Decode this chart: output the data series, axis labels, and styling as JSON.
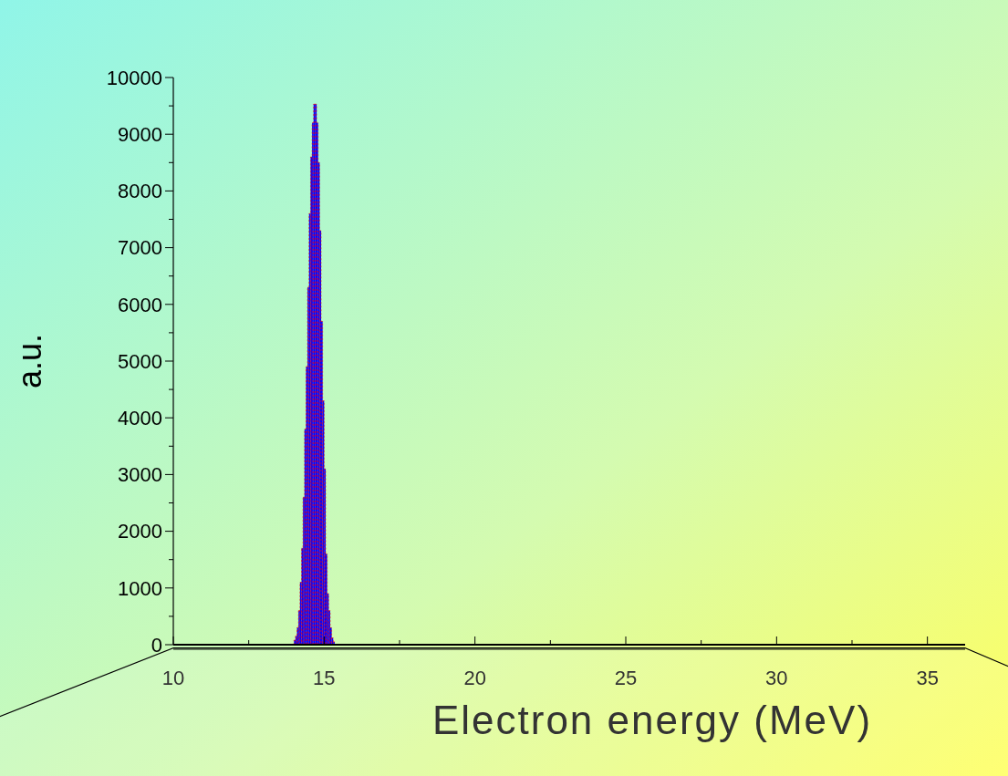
{
  "chart_data": {
    "type": "histogram",
    "xlabel": "Electron energy (MeV)",
    "ylabel": "a.u.",
    "bins": [
      14.0,
      14.05,
      14.1,
      14.15,
      14.2,
      14.25,
      14.3,
      14.35,
      14.4,
      14.45,
      14.5,
      14.55,
      14.6,
      14.65,
      14.7,
      14.75,
      14.8,
      14.85,
      14.9,
      14.95,
      15.0,
      15.05,
      15.1,
      15.15,
      15.2,
      15.25,
      15.3,
      15.35
    ],
    "values": [
      80,
      150,
      300,
      600,
      1100,
      1700,
      2600,
      3800,
      4900,
      6300,
      7600,
      8600,
      9200,
      9530,
      9530,
      9200,
      8500,
      7300,
      5700,
      4300,
      3100,
      1600,
      900,
      600,
      300,
      120,
      50
    ],
    "color": "#0000ff",
    "xlim": [
      10,
      36.25
    ],
    "xticks": [
      10,
      {
        "value": 12.5,
        "label": null
      },
      15,
      {
        "value": 17.5,
        "label": null
      },
      20,
      {
        "value": 22.5,
        "label": null
      },
      25,
      {
        "value": 27.5,
        "label": null
      },
      30,
      {
        "value": 32.5,
        "label": null
      },
      35
    ],
    "ylim": [
      0,
      10000
    ],
    "yticks": [
      0,
      {
        "value": 500,
        "label": null
      },
      1000,
      {
        "value": 1500,
        "label": null
      },
      2000,
      {
        "value": 2500,
        "label": null
      },
      3000,
      {
        "value": 3500,
        "label": null
      },
      4000,
      {
        "value": 4500,
        "label": null
      },
      5000,
      {
        "value": 5500,
        "label": null
      },
      6000,
      {
        "value": 6500,
        "label": null
      },
      7000,
      {
        "value": 7500,
        "label": null
      },
      8000,
      {
        "value": 8500,
        "label": null
      },
      9000,
      {
        "value": 9500,
        "label": null
      },
      10000
    ],
    "grid": false
  }
}
